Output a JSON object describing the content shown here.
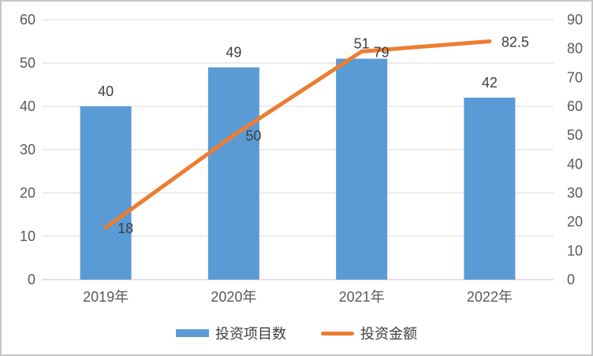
{
  "chart_data": {
    "type": "combo",
    "title": "",
    "categories": [
      "2019年",
      "2020年",
      "2021年",
      "2022年"
    ],
    "series": [
      {
        "name": "投资项目数",
        "type": "bar",
        "axis": "left",
        "color": "#5B9BD5",
        "values": [
          40,
          49,
          51,
          42
        ]
      },
      {
        "name": "投资金额",
        "type": "line",
        "axis": "right",
        "color": "#ED7D31",
        "values": [
          18,
          50,
          79,
          82.5
        ]
      }
    ],
    "left_axis": {
      "min": 0,
      "max": 60,
      "step": 10,
      "ticks": [
        "0",
        "10",
        "20",
        "30",
        "40",
        "50",
        "60"
      ]
    },
    "right_axis": {
      "min": 0,
      "max": 90,
      "step": 10,
      "ticks": [
        "0",
        "10",
        "20",
        "30",
        "40",
        "50",
        "60",
        "70",
        "80",
        "90"
      ]
    },
    "grid": true,
    "data_labels": true,
    "legend_position": "bottom",
    "colors": {
      "grid": "#D9D9D9",
      "axis_text": "#595959",
      "label_text": "#404040",
      "frame_border": "#C6C6C6"
    }
  }
}
